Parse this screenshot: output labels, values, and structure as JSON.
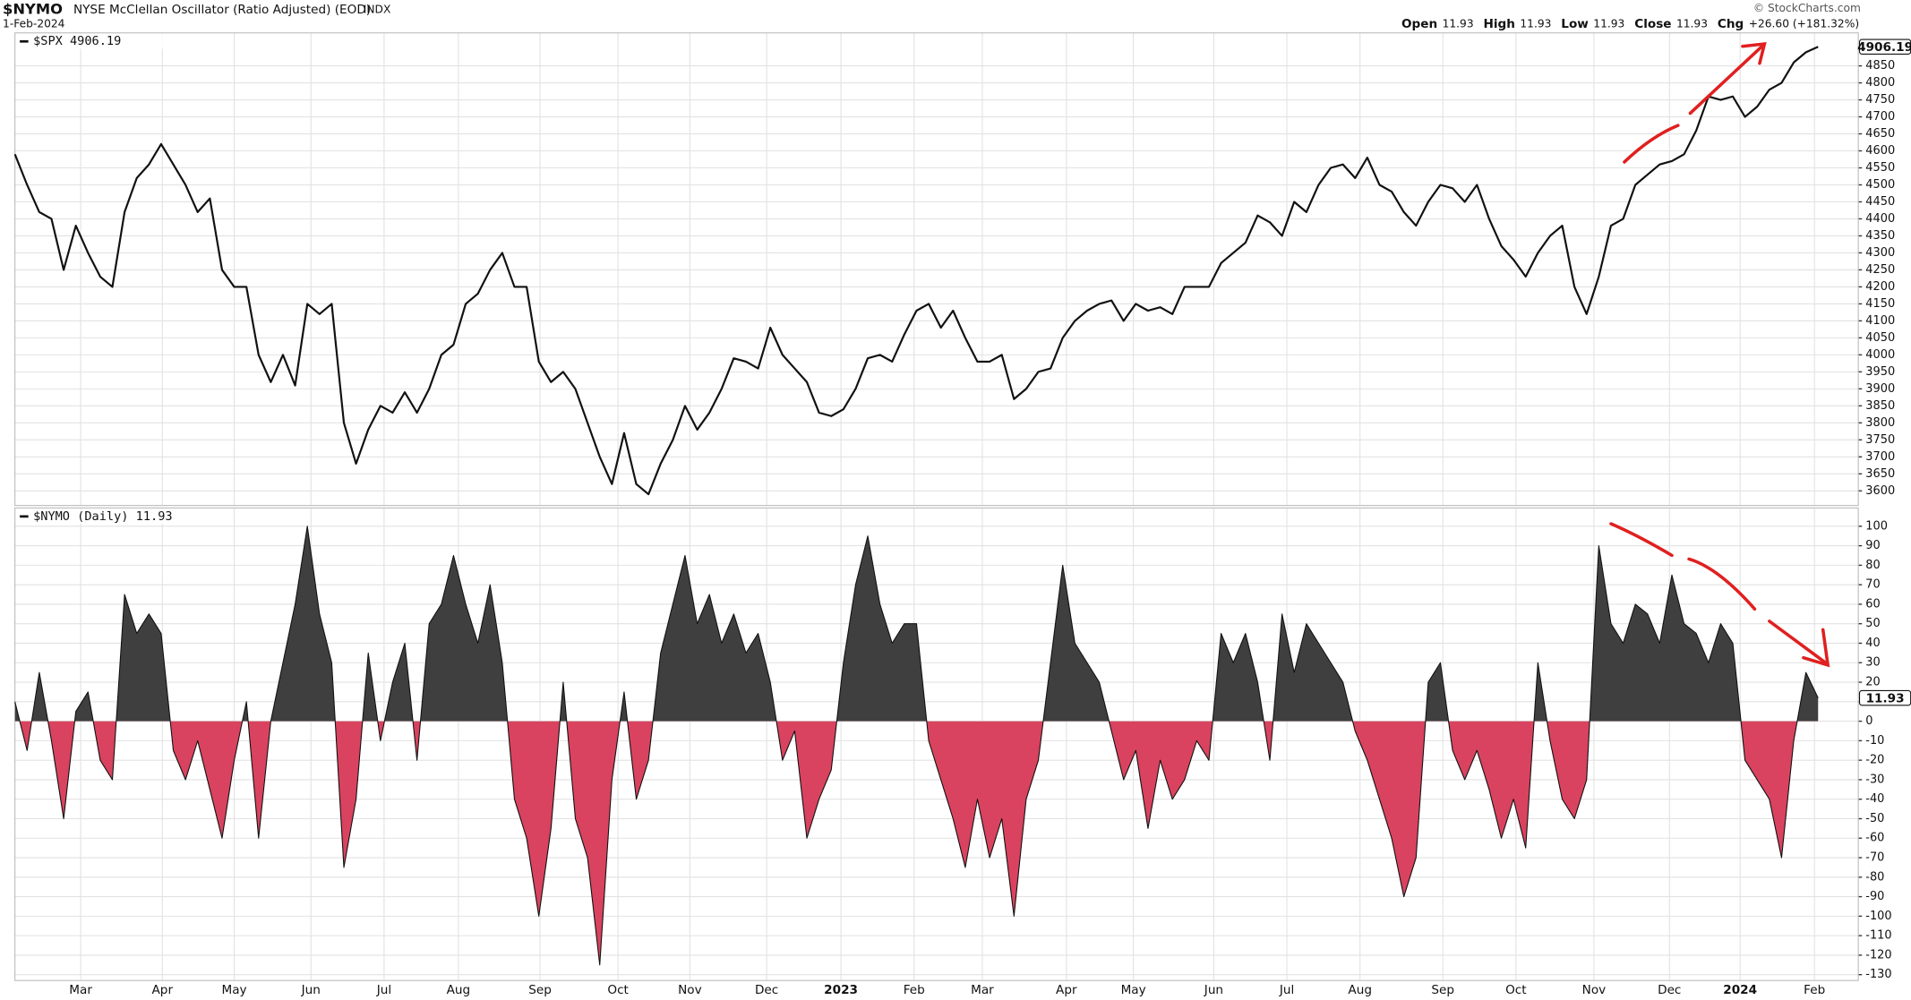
{
  "header": {
    "symbol": "$NYMO",
    "name": "NYSE McClellan Oscillator (Ratio Adjusted) (EOD)",
    "exchange": "INDX",
    "date": "1-Feb-2024",
    "credit": "© StockCharts.com",
    "quote": [
      {
        "label": "Open",
        "value": "11.93"
      },
      {
        "label": "High",
        "value": "11.93"
      },
      {
        "label": "Low",
        "value": "11.93"
      },
      {
        "label": "Close",
        "value": "11.93"
      },
      {
        "label": "Chg",
        "value": "+26.60 (+181.32%)"
      }
    ]
  },
  "chart_data": [
    {
      "type": "line",
      "legend": "$SPX 4906.19",
      "last_label": "4906.19",
      "series": [
        {
          "name": "$SPX",
          "color": "#111111",
          "values": [
            4590,
            4500,
            4420,
            4400,
            4250,
            4380,
            4300,
            4230,
            4200,
            4420,
            4520,
            4560,
            4620,
            4560,
            4500,
            4420,
            4460,
            4250,
            4200,
            4200,
            4000,
            3920,
            4000,
            3910,
            4150,
            4120,
            4150,
            3800,
            3680,
            3780,
            3850,
            3830,
            3890,
            3830,
            3900,
            4000,
            4030,
            4150,
            4180,
            4250,
            4300,
            4200,
            4200,
            3980,
            3920,
            3950,
            3900,
            3800,
            3700,
            3620,
            3770,
            3620,
            3590,
            3680,
            3750,
            3850,
            3780,
            3830,
            3900,
            3990,
            3980,
            3960,
            4080,
            4000,
            3960,
            3920,
            3830,
            3820,
            3840,
            3900,
            3990,
            4000,
            3980,
            4060,
            4130,
            4150,
            4080,
            4130,
            4050,
            3980,
            3980,
            4000,
            3870,
            3900,
            3950,
            3960,
            4050,
            4100,
            4130,
            4150,
            4160,
            4100,
            4150,
            4130,
            4140,
            4120,
            4200,
            4200,
            4200,
            4270,
            4300,
            4330,
            4410,
            4390,
            4350,
            4450,
            4420,
            4500,
            4550,
            4560,
            4520,
            4580,
            4500,
            4480,
            4420,
            4380,
            4450,
            4500,
            4490,
            4450,
            4500,
            4400,
            4320,
            4280,
            4230,
            4300,
            4350,
            4380,
            4200,
            4120,
            4230,
            4380,
            4400,
            4500,
            4530,
            4560,
            4570,
            4590,
            4660,
            4760,
            4750,
            4760,
            4700,
            4730,
            4780,
            4800,
            4860,
            4890,
            4906.19
          ]
        }
      ],
      "xlim": [
        0,
        151.3
      ],
      "xticks": [
        {
          "value": 5.4,
          "label": "Mar"
        },
        {
          "value": 12.1,
          "label": "Apr"
        },
        {
          "value": 18,
          "label": "May"
        },
        {
          "value": 24.3,
          "label": "Jun"
        },
        {
          "value": 30.3,
          "label": "Jul"
        },
        {
          "value": 36.4,
          "label": "Aug"
        },
        {
          "value": 43.1,
          "label": "Sep"
        },
        {
          "value": 49.5,
          "label": "Oct"
        },
        {
          "value": 55.4,
          "label": "Nov"
        },
        {
          "value": 61.7,
          "label": "Dec"
        },
        {
          "value": 67.8,
          "label": "2023"
        },
        {
          "value": 73.8,
          "label": "Feb"
        },
        {
          "value": 79.4,
          "label": "Mar"
        },
        {
          "value": 86.3,
          "label": "Apr"
        },
        {
          "value": 91.8,
          "label": "May"
        },
        {
          "value": 98.4,
          "label": "Jun"
        },
        {
          "value": 104.4,
          "label": "Jul"
        },
        {
          "value": 110.4,
          "label": "Aug"
        },
        {
          "value": 117.2,
          "label": "Sep"
        },
        {
          "value": 123.2,
          "label": "Oct"
        },
        {
          "value": 129.6,
          "label": "Nov"
        },
        {
          "value": 135.8,
          "label": "Dec"
        },
        {
          "value": 141.6,
          "label": "2024"
        },
        {
          "value": 147.7,
          "label": "Feb"
        }
      ],
      "ylim": [
        3557,
        4947
      ],
      "yticks": [
        3600,
        3650,
        3700,
        3750,
        3800,
        3850,
        3900,
        3950,
        4000,
        4050,
        4100,
        4150,
        4200,
        4250,
        4300,
        4350,
        4400,
        4450,
        4500,
        4550,
        4600,
        4650,
        4700,
        4750,
        4800,
        4850
      ],
      "grid": true
    },
    {
      "type": "area",
      "legend": "$NYMO (Daily) 11.93",
      "last_label": "11.93",
      "series": [
        {
          "name": "$NYMO",
          "color": "#111111",
          "positive_color": "#3f3f3f",
          "negative_color": "#d9435f",
          "values": [
            10,
            -15,
            25,
            -10,
            -50,
            5,
            15,
            -20,
            -30,
            65,
            45,
            55,
            45,
            -15,
            -30,
            -10,
            -35,
            -60,
            -20,
            10,
            -60,
            0,
            30,
            60,
            100,
            55,
            30,
            -75,
            -40,
            35,
            -10,
            20,
            40,
            -20,
            50,
            60,
            85,
            60,
            40,
            70,
            30,
            -40,
            -60,
            -100,
            -55,
            20,
            -50,
            -70,
            -125,
            -30,
            15,
            -40,
            -20,
            35,
            60,
            85,
            50,
            65,
            40,
            55,
            35,
            45,
            20,
            -20,
            -5,
            -60,
            -40,
            -25,
            30,
            70,
            95,
            60,
            40,
            50,
            50,
            -10,
            -30,
            -50,
            -75,
            -40,
            -70,
            -50,
            -100,
            -40,
            -20,
            30,
            80,
            40,
            30,
            20,
            -5,
            -30,
            -15,
            -55,
            -20,
            -40,
            -30,
            -10,
            -20,
            45,
            30,
            45,
            20,
            -20,
            55,
            25,
            50,
            40,
            30,
            20,
            -5,
            -20,
            -40,
            -60,
            -90,
            -70,
            20,
            30,
            -15,
            -30,
            -15,
            -35,
            -60,
            -40,
            -65,
            30,
            -10,
            -40,
            -50,
            -30,
            90,
            50,
            40,
            60,
            55,
            40,
            75,
            50,
            45,
            30,
            50,
            40,
            -20,
            -30,
            -40,
            -70,
            -10,
            25,
            11.93
          ]
        }
      ],
      "xlim": [
        0,
        151.3
      ],
      "xticks": [
        {
          "value": 5.4,
          "label": "Mar"
        },
        {
          "value": 12.1,
          "label": "Apr"
        },
        {
          "value": 18,
          "label": "May"
        },
        {
          "value": 24.3,
          "label": "Jun"
        },
        {
          "value": 30.3,
          "label": "Jul"
        },
        {
          "value": 36.4,
          "label": "Aug"
        },
        {
          "value": 43.1,
          "label": "Sep"
        },
        {
          "value": 49.5,
          "label": "Oct"
        },
        {
          "value": 55.4,
          "label": "Nov"
        },
        {
          "value": 61.7,
          "label": "Dec"
        },
        {
          "value": 67.8,
          "label": "2023"
        },
        {
          "value": 73.8,
          "label": "Feb"
        },
        {
          "value": 79.4,
          "label": "Mar"
        },
        {
          "value": 86.3,
          "label": "Apr"
        },
        {
          "value": 91.8,
          "label": "May"
        },
        {
          "value": 98.4,
          "label": "Jun"
        },
        {
          "value": 104.4,
          "label": "Jul"
        },
        {
          "value": 110.4,
          "label": "Aug"
        },
        {
          "value": 117.2,
          "label": "Sep"
        },
        {
          "value": 123.2,
          "label": "Oct"
        },
        {
          "value": 129.6,
          "label": "Nov"
        },
        {
          "value": 135.8,
          "label": "Dec"
        },
        {
          "value": 141.6,
          "label": "2024"
        },
        {
          "value": 147.7,
          "label": "Feb"
        }
      ],
      "ylim": [
        -133,
        109.4
      ],
      "yticks": [
        -130,
        -120,
        -110,
        -100,
        -90,
        -80,
        -70,
        -60,
        -50,
        -40,
        -30,
        -20,
        -10,
        0,
        10,
        20,
        30,
        40,
        50,
        60,
        70,
        80,
        90,
        100
      ],
      "grid": true
    }
  ]
}
